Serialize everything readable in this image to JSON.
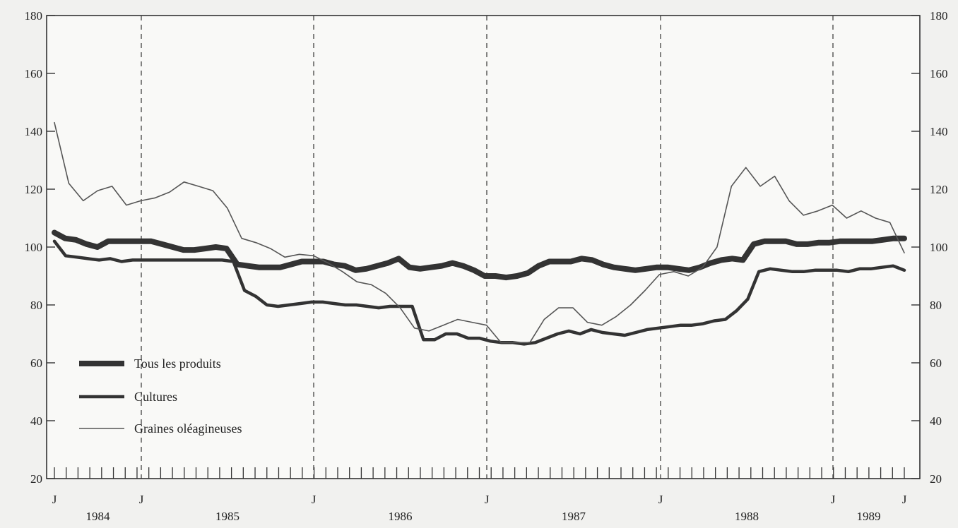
{
  "chart_data": {
    "type": "line",
    "title": "",
    "xlabel": "",
    "ylabel": "",
    "ylim": [
      20,
      180
    ],
    "yticks": [
      20,
      40,
      60,
      80,
      100,
      120,
      140,
      160,
      180
    ],
    "x_month_ticks": [
      "J",
      "J",
      "J",
      "J",
      "J",
      "J"
    ],
    "years": [
      "1984",
      "1985",
      "1986",
      "1987",
      "1988",
      "1989"
    ],
    "grid": "dashed vertical lines at each January",
    "legend": "bottom-left",
    "series": [
      {
        "name": "Tous les produits",
        "color": "#333333",
        "values": [
          105,
          103,
          102.5,
          101,
          100,
          102,
          102,
          102,
          102,
          102,
          101,
          100,
          99,
          99,
          99.5,
          100,
          99.5,
          94,
          93.5,
          93,
          93,
          93,
          94,
          95,
          95,
          95,
          94,
          93.5,
          92,
          92.5,
          93.5,
          94.5,
          96,
          93,
          92.5,
          93,
          93.5,
          94.5,
          93.5,
          92,
          90,
          90,
          89.5,
          90,
          91,
          93.5,
          95,
          95,
          95,
          96,
          95.5,
          94,
          93,
          92.5,
          92,
          92.5,
          93,
          93,
          92.5,
          92,
          93,
          94.5,
          95.5,
          96,
          95.5,
          101,
          102,
          102,
          102,
          101,
          101,
          101.5,
          101.5,
          102,
          102,
          102,
          102,
          102.5,
          103,
          103
        ]
      },
      {
        "name": "Cultures",
        "color": "#333333",
        "values": [
          102,
          97,
          96.5,
          96,
          95.5,
          96,
          95,
          95.5,
          95.5,
          95.5,
          95.5,
          95.5,
          95.5,
          95.5,
          95.5,
          95.5,
          95,
          85,
          83,
          80,
          79.5,
          80,
          80.5,
          81,
          81,
          80.5,
          80,
          80,
          79.5,
          79,
          79.5,
          79.5,
          79.5,
          68,
          68,
          70,
          70,
          68.5,
          68.5,
          67.5,
          67,
          67,
          66.5,
          67,
          68.5,
          70,
          71,
          70,
          71.5,
          70.5,
          70,
          69.5,
          70.5,
          71.5,
          72,
          72.5,
          73,
          73,
          73.5,
          74.5,
          75,
          78,
          82,
          91.5,
          92.5,
          92,
          91.5,
          91.5,
          92,
          92,
          92,
          91.5,
          92.5,
          92.5,
          93,
          93.5,
          92
        ]
      },
      {
        "name": "Graines oléagineuses",
        "color": "#555555",
        "values": [
          143,
          122,
          116,
          119.5,
          121,
          114.5,
          116,
          117,
          119,
          122.5,
          121,
          119.5,
          113.5,
          103,
          101.5,
          99.5,
          96.5,
          97.5,
          97,
          94.5,
          91.5,
          88,
          87,
          84,
          79,
          72,
          71,
          73,
          75,
          74,
          73,
          67,
          67,
          67,
          75,
          79,
          79,
          74,
          73,
          76,
          80,
          85,
          90.5,
          91.5,
          90,
          93,
          100,
          121,
          127.5,
          121,
          124.5,
          116,
          111,
          112.5,
          114.5,
          110,
          112.5,
          110,
          108.5,
          98
        ]
      }
    ]
  }
}
